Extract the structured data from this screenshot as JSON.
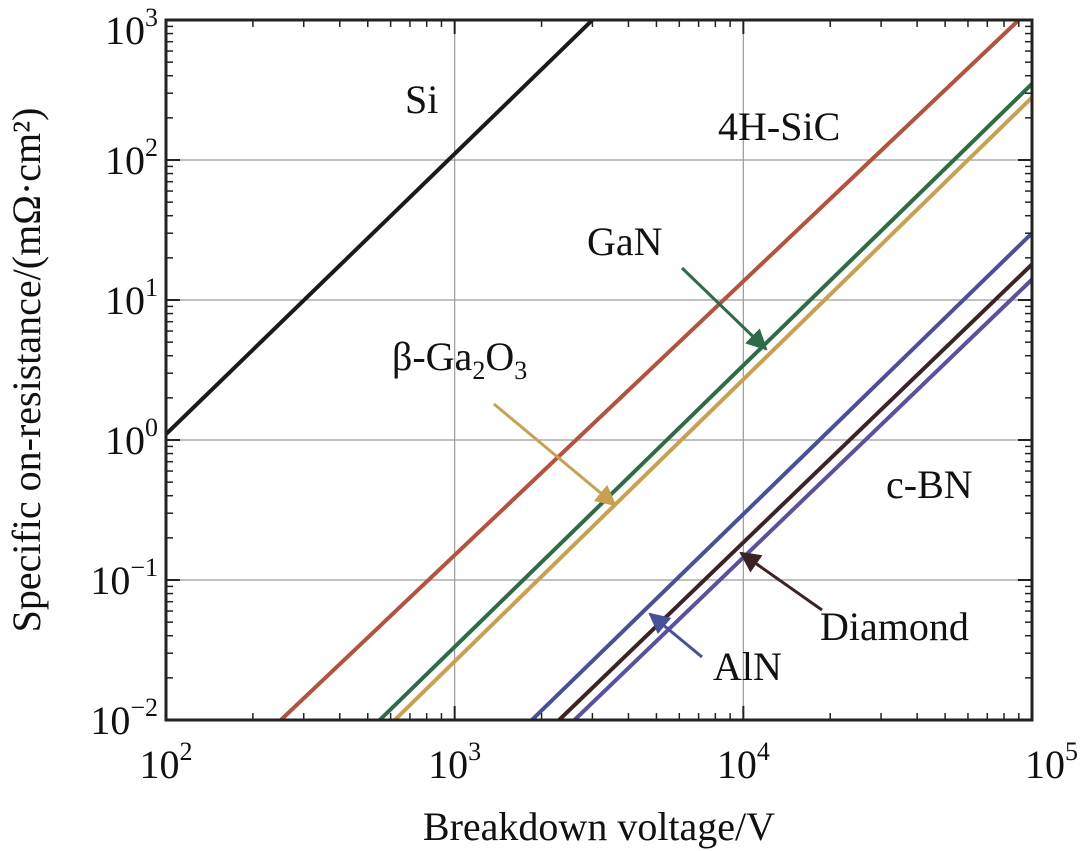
{
  "chart_data": {
    "type": "line",
    "xscale": "log",
    "yscale": "log",
    "xlim": [
      100,
      100000
    ],
    "ylim": [
      0.01,
      1000
    ],
    "xlabel": "Breakdown voltage/V",
    "ylabel": "Specific on-resistance/(mΩ·cm²)",
    "grid": true,
    "xticks": [
      {
        "value": 100,
        "base": "10",
        "exp": "2"
      },
      {
        "value": 1000,
        "base": "10",
        "exp": "3"
      },
      {
        "value": 10000,
        "base": "10",
        "exp": "4"
      },
      {
        "value": 100000,
        "base": "10",
        "exp": "5"
      }
    ],
    "yticks": [
      {
        "value": 0.01,
        "base": "10",
        "exp": "−2"
      },
      {
        "value": 0.1,
        "base": "10",
        "exp": "−1"
      },
      {
        "value": 1,
        "base": "10",
        "exp": "0"
      },
      {
        "value": 10,
        "base": "10",
        "exp": "1"
      },
      {
        "value": 100,
        "base": "10",
        "exp": "2"
      },
      {
        "value": 1000,
        "base": "10",
        "exp": "3"
      }
    ],
    "series": [
      {
        "name": "Si",
        "color": "#1a1a1a",
        "x": [
          100,
          3000
        ],
        "y": [
          1.1,
          1000
        ]
      },
      {
        "name": "4H-SiC",
        "color": "#b4523e",
        "x": [
          250,
          90000
        ],
        "y": [
          0.01,
          1000
        ]
      },
      {
        "name": "GaN",
        "color": "#2e6b47",
        "x": [
          550,
          100000
        ],
        "y": [
          0.01,
          350
        ]
      },
      {
        "name": "β-Ga2O3",
        "color": "#c9a050",
        "x": [
          620,
          100000
        ],
        "y": [
          0.01,
          280
        ]
      },
      {
        "name": "AlN",
        "color": "#4a4f9c",
        "x": [
          1850,
          100000
        ],
        "y": [
          0.01,
          30
        ]
      },
      {
        "name": "Diamond",
        "color": "#3d2424",
        "x": [
          2300,
          100000
        ],
        "y": [
          0.01,
          18
        ]
      },
      {
        "name": "c-BN",
        "color": "#5a4fa0",
        "x": [
          2600,
          100000
        ],
        "y": [
          0.01,
          14
        ]
      }
    ],
    "labels": {
      "si": "Si",
      "sic": "4H-SiC",
      "gan": "GaN",
      "ga2o3": {
        "prefix": "β-Ga",
        "sub1": "2",
        "mid": "O",
        "sub2": "3"
      },
      "cbn": "c-BN",
      "diamond": "Diamond",
      "aln": "AlN"
    }
  }
}
